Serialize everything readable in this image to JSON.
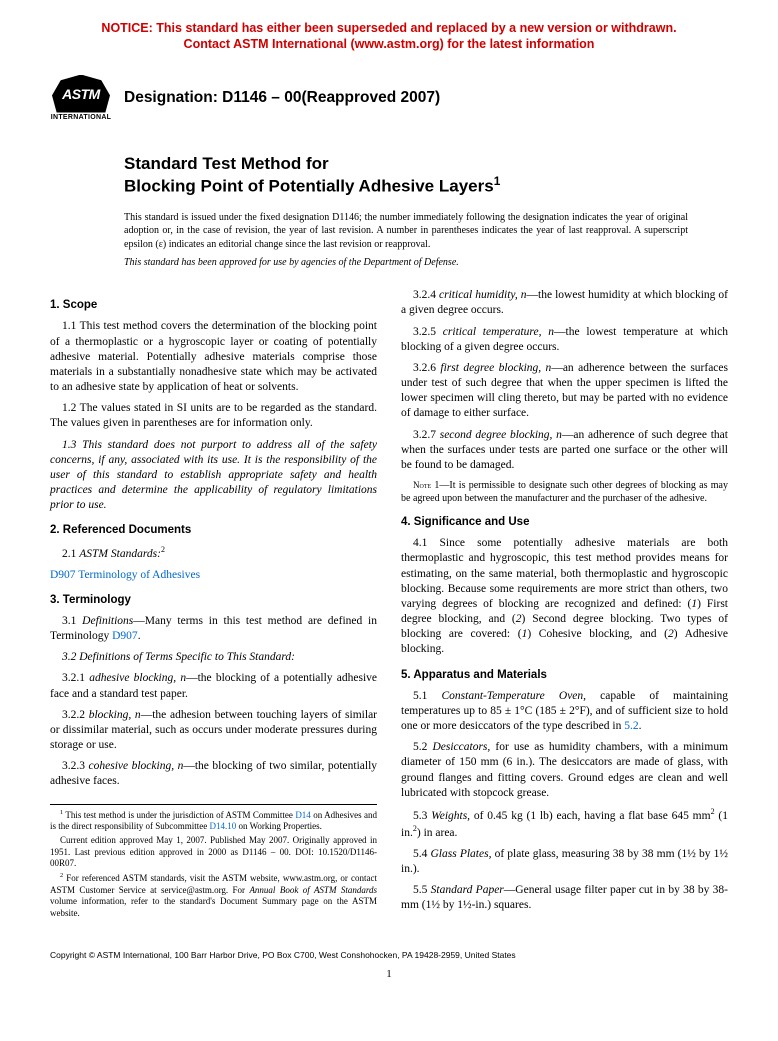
{
  "notice": {
    "line1": "NOTICE: This standard has either been superseded and replaced by a new version or withdrawn.",
    "line2": "Contact ASTM International (www.astm.org) for the latest information"
  },
  "logo": {
    "text": "ASTM",
    "subtext": "INTERNATIONAL"
  },
  "designation": "Designation: D1146 – 00(Reapproved 2007)",
  "title": {
    "line1": "Standard Test Method for",
    "line2": "Blocking Point of Potentially Adhesive Layers",
    "sup": "1"
  },
  "intro": "This standard is issued under the fixed designation D1146; the number immediately following the designation indicates the year of original adoption or, in the case of revision, the year of last revision. A number in parentheses indicates the year of last reapproval. A superscript epsilon (ε) indicates an editorial change since the last revision or reapproval.",
  "intro_approved": "This standard has been approved for use by agencies of the Department of Defense.",
  "sections": {
    "s1": {
      "head": "1. Scope",
      "p1": "1.1 This test method covers the determination of the blocking point of a thermoplastic or a hygroscopic layer or coating of potentially adhesive material. Potentially adhesive materials comprise those materials in a substantially nonadhesive state which may be activated to an adhesive state by application of heat or solvents.",
      "p2": "1.2 The values stated in SI units are to be regarded as the standard. The values given in parentheses are for information only.",
      "p3": "1.3 This standard does not purport to address all of the safety concerns, if any, associated with its use. It is the responsibility of the user of this standard to establish appropriate safety and health practices and determine the applicability of regulatory limitations prior to use."
    },
    "s2": {
      "head": "2. Referenced Documents",
      "p1_lead": "2.1 ",
      "p1_ital": "ASTM Standards:",
      "p1_sup": "2",
      "link1": "D907",
      "link2": "Terminology of Adhesives"
    },
    "s3": {
      "head": "3. Terminology",
      "p1a": "3.1 ",
      "p1b": "Definitions",
      "p1c": "—Many terms in this test method are defined in Terminology ",
      "p1link": "D907",
      "p1d": ".",
      "p2": "3.2 Definitions of Terms Specific to This Standard:",
      "p3a": "3.2.1 ",
      "p3b": "adhesive blocking, n",
      "p3c": "—the blocking of a potentially adhesive face and a standard test paper.",
      "p4a": "3.2.2 ",
      "p4b": "blocking, n",
      "p4c": "—the adhesion between touching layers of similar or dissimilar material, such as occurs under moderate pressures during storage or use.",
      "p5a": "3.2.3 ",
      "p5b": "cohesive blocking, n",
      "p5c": "—the blocking of two similar, potentially adhesive faces.",
      "p6a": "3.2.4 ",
      "p6b": "critical humidity, n",
      "p6c": "—the lowest humidity at which blocking of a given degree occurs.",
      "p7a": "3.2.5 ",
      "p7b": "critical temperature, n",
      "p7c": "—the lowest temperature at which blocking of a given degree occurs.",
      "p8a": "3.2.6 ",
      "p8b": "first degree blocking, n",
      "p8c": "—an adherence between the surfaces under test of such degree that when the upper specimen is lifted the lower specimen will cling thereto, but may be parted with no evidence of damage to either surface.",
      "p9a": "3.2.7 ",
      "p9b": "second degree blocking, n",
      "p9c": "—an adherence of such degree that when the surfaces under tests are parted one surface or the other will be found to be damaged.",
      "note1": " 1—It is permissible to designate such other degrees of blocking as may be agreed upon between the manufacturer and the purchaser of the adhesive.",
      "note1_label": "Note"
    },
    "s4": {
      "head": "4. Significance and Use",
      "p1a": "4.1 Since some potentially adhesive materials are both thermoplastic and hygroscopic, this test method provides means for estimating, on the same material, both thermoplastic and hygroscopic blocking. Because some requirements are more strict than others, two varying degrees of blocking are recognized and defined: (",
      "p1b": "1",
      "p1c": ") First degree blocking, and (",
      "p1d": "2",
      "p1e": ") Second degree blocking. Two types of blocking are covered: (",
      "p1f": "1",
      "p1g": ") Cohesive blocking, and (",
      "p1h": "2",
      "p1i": ") Adhesive blocking."
    },
    "s5": {
      "head": "5. Apparatus and Materials",
      "p1a": "5.1 ",
      "p1b": "Constant-Temperature Oven,",
      "p1c": " capable of maintaining temperatures up to 85 ± 1°C (185 ± 2°F), and of sufficient size to hold one or more desiccators of the type described in ",
      "p1link": "5.2",
      "p1d": ".",
      "p2a": "5.2 ",
      "p2b": "Desiccators,",
      "p2c": " for use as humidity chambers, with a minimum diameter of 150 mm (6 in.). The desiccators are made of glass, with ground flanges and fitting covers. Ground edges are clean and well lubricated with stopcock grease.",
      "p3a": "5.3 ",
      "p3b": "Weights,",
      "p3c": " of 0.45 kg (1 lb) each, having a flat base 645 mm",
      "p3sup": "2",
      "p3d": " (1 in.",
      "p3sup2": "2",
      "p3e": ") in area.",
      "p4a": "5.4 ",
      "p4b": "Glass Plates,",
      "p4c": " of plate glass, measuring 38 by 38 mm (1½ by 1½ in.).",
      "p5a": "5.5 ",
      "p5b": "Standard Paper",
      "p5c": "—General usage filter paper cut in by 38 by 38-mm (1½ by 1½-in.) squares."
    }
  },
  "footnotes": {
    "f1a": " This test method is under the jurisdiction of ASTM Committee ",
    "f1link1": "D14",
    "f1b": " on Adhesives and is the direct responsibility of Subcommittee ",
    "f1link2": "D14.10",
    "f1c": " on Working Properties.",
    "f1d": "Current edition approved May 1, 2007. Published May 2007. Originally approved in 1951. Last previous edition approved in 2000 as D1146 – 00. DOI: 10.1520/D1146-00R07.",
    "f2a": " For referenced ASTM standards, visit the ASTM website, www.astm.org, or contact ASTM Customer Service at service@astm.org. For ",
    "f2b": "Annual Book of ASTM Standards",
    "f2c": " volume information, refer to the standard's Document Summary page on the ASTM website."
  },
  "copyright": "Copyright © ASTM International, 100 Barr Harbor Drive, PO Box C700, West Conshohocken, PA 19428-2959, United States",
  "page": "1"
}
